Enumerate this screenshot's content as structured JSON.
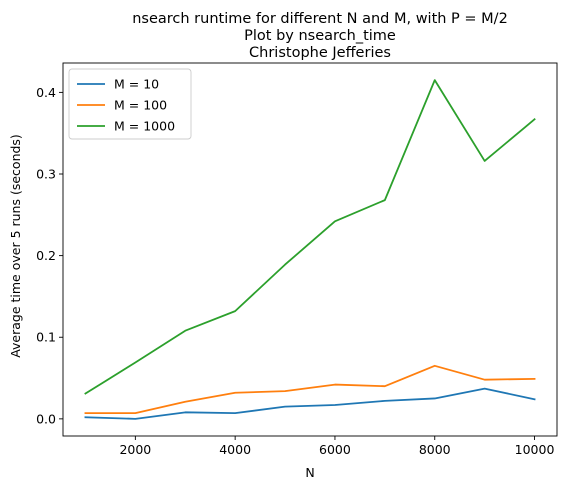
{
  "chart_data": {
    "type": "line",
    "title": "nsearch runtime for different N and M, with P = M/2\nPlot by nsearch_time\nChristophe Jefferies",
    "title_lines": [
      "nsearch runtime for different N and M, with P = M/2",
      "Plot by nsearch_time",
      "Christophe Jefferies"
    ],
    "xlabel": "N",
    "ylabel": "Average time over 5 runs (seconds)",
    "x": [
      1000,
      2000,
      3000,
      4000,
      5000,
      6000,
      7000,
      8000,
      9000,
      10000
    ],
    "xlim": [
      550,
      10450
    ],
    "ylim": [
      -0.021,
      0.436
    ],
    "xticks": [
      2000,
      4000,
      6000,
      8000,
      10000
    ],
    "xtick_labels": [
      "2000",
      "4000",
      "6000",
      "8000",
      "10000"
    ],
    "yticks": [
      0.0,
      0.1,
      0.2,
      0.3,
      0.4
    ],
    "ytick_labels": [
      "0.0",
      "0.1",
      "0.2",
      "0.3",
      "0.4"
    ],
    "grid": false,
    "legend_position": "top-left",
    "series": [
      {
        "name": "M = 10",
        "color": "#1f77b4",
        "values": [
          0.002,
          0.0,
          0.008,
          0.007,
          0.015,
          0.017,
          0.022,
          0.025,
          0.037,
          0.024
        ]
      },
      {
        "name": "M = 100",
        "color": "#ff7f0e",
        "values": [
          0.007,
          0.007,
          0.021,
          0.032,
          0.034,
          0.042,
          0.04,
          0.065,
          0.048,
          0.049
        ]
      },
      {
        "name": "M = 1000",
        "color": "#2ca02c",
        "values": [
          0.031,
          0.069,
          0.108,
          0.132,
          0.189,
          0.242,
          0.268,
          0.415,
          0.316,
          0.367
        ]
      }
    ]
  }
}
